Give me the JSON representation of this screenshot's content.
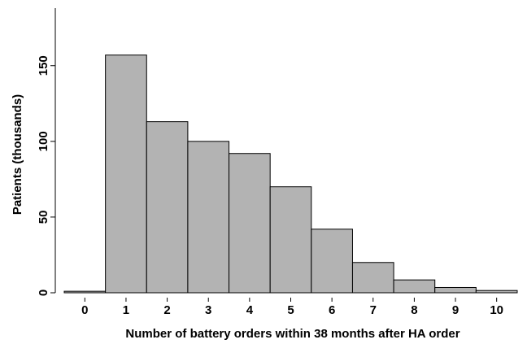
{
  "chart_data": {
    "type": "bar",
    "x_label": "Number of battery orders within 38 months after HA order",
    "y_label": "Patients (thousands)",
    "categories": [
      "0",
      "1",
      "2",
      "3",
      "4",
      "5",
      "6",
      "7",
      "8",
      "9",
      "10"
    ],
    "values": [
      1,
      157,
      113,
      100,
      92,
      70,
      42,
      20,
      8.5,
      3.5,
      1.5
    ],
    "color": "#b3b3b3",
    "ylim": [
      0,
      188
    ],
    "yticks": [
      0,
      50,
      100,
      150
    ],
    "grid": false
  }
}
